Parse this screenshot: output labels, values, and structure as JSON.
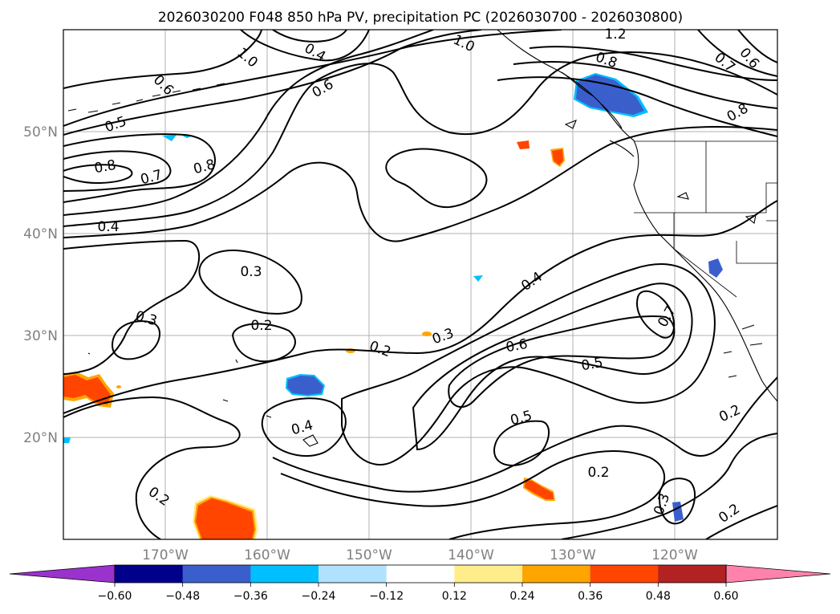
{
  "title": "2026030200 F048 850 hPa PV, precipitation PC (2026030700 - 2026030800)",
  "lon_labels": [
    "170°W",
    "160°W",
    "150°W",
    "140°W",
    "130°W",
    "120°W"
  ],
  "lat_labels": [
    "50°N",
    "40°N",
    "30°N",
    "20°N"
  ],
  "contour_labels": [
    "1.2",
    "1.0",
    "0.4",
    "1.0",
    "0.6",
    "0.6",
    "0.5",
    "0.8",
    "0.7",
    "0.8",
    "0.4",
    "0.8",
    "0.6",
    "0.7",
    "0.8",
    "0.3",
    "0.2",
    "0.3",
    "0.2",
    "0.3",
    "0.4",
    "0.6",
    "0.5",
    "0.7",
    "0.4",
    "0.5",
    "0.2",
    "0.2",
    "0.2",
    "0.3",
    "0.2"
  ],
  "colorbar": {
    "ticks": [
      "−0.60",
      "−0.48",
      "−0.36",
      "−0.24",
      "−0.12",
      "0.12",
      "0.24",
      "0.36",
      "0.48",
      "0.60"
    ],
    "colors": [
      "#9a32cd",
      "#00008b",
      "#3a5fcd",
      "#00bfff",
      "#b0e2ff",
      "#ffffff",
      "#ffec8b",
      "#ffa500",
      "#ff4500",
      "#b22222",
      "#ff82ab"
    ]
  },
  "legend_colors": {
    "neg_strong": "#3a5fcd",
    "neg_mid": "#00bfff",
    "neg_light": "#b0e2ff",
    "pos_light": "#ffec8b",
    "pos_mid": "#ffa500",
    "pos_strong": "#ff4500"
  }
}
